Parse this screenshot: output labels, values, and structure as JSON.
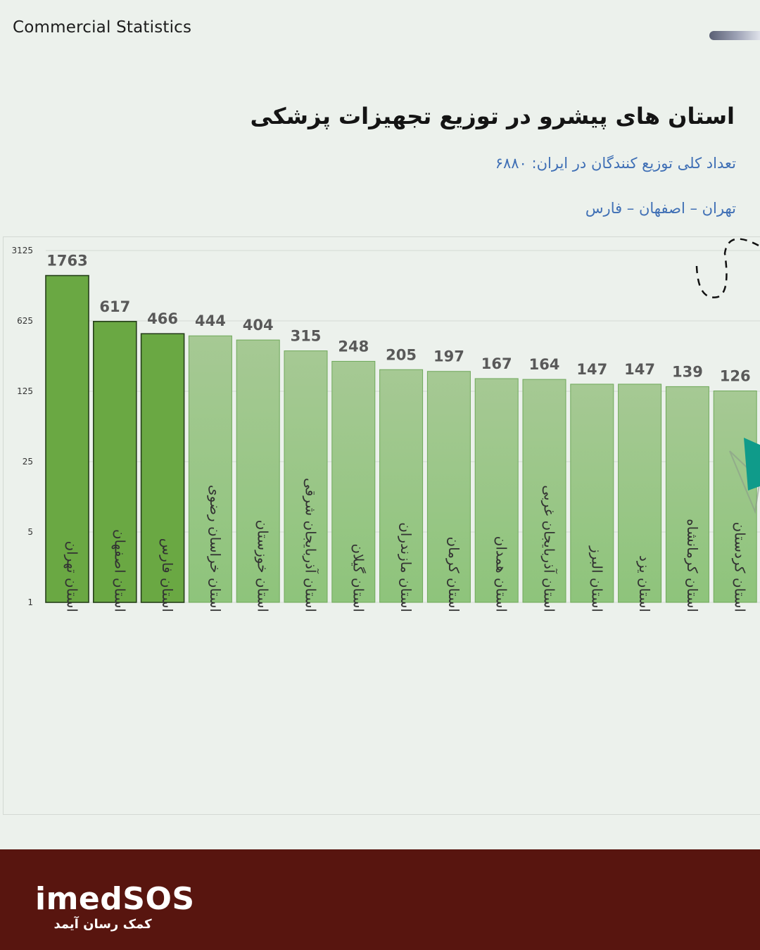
{
  "header": {
    "brand": "Commercial Statistics"
  },
  "title": "استان های پیشرو در توزیع تجهیزات پزشکی",
  "subtitle_total": "تعداد کلی توزیع کنندگان در ایران: ۶۸۸۰",
  "subtitle_leaders": "تهران – اصفهان – فارس",
  "colors": {
    "highlight_bar": "#6aa843",
    "normal_bar_top": "#a6c994",
    "normal_bar_bottom": "#8ec47b",
    "value_label": "#595959",
    "footer_bg": "#58150f",
    "subtitle": "#3f6fb5",
    "accent_teal": "#0f9b8a"
  },
  "chart_data": {
    "type": "bar",
    "scale": "log (base 5)",
    "yticks": [
      "3125",
      "625",
      "125",
      "25",
      "5",
      "1"
    ],
    "ylim": [
      1,
      3125
    ],
    "grid": true,
    "categories": [
      "استان تهران",
      "استان اصفهان",
      "استان فارس",
      "استان خراسان رضوی",
      "استان خوزستان",
      "استان آذربایجان شرقی",
      "استان گیلان",
      "استان مازندران",
      "استان کرمان",
      "استان همدان",
      "استان آذربایجان غربی",
      "استان البرز",
      "استان یزد",
      "استان کرمانشاه",
      "استان کردستان"
    ],
    "values": [
      1763,
      617,
      466,
      444,
      404,
      315,
      248,
      205,
      197,
      167,
      164,
      147,
      147,
      139,
      126
    ],
    "highlighted": [
      0,
      1,
      2
    ]
  },
  "footer": {
    "logo": "imedSOS",
    "tagline": "کمک رسان آیمد"
  }
}
